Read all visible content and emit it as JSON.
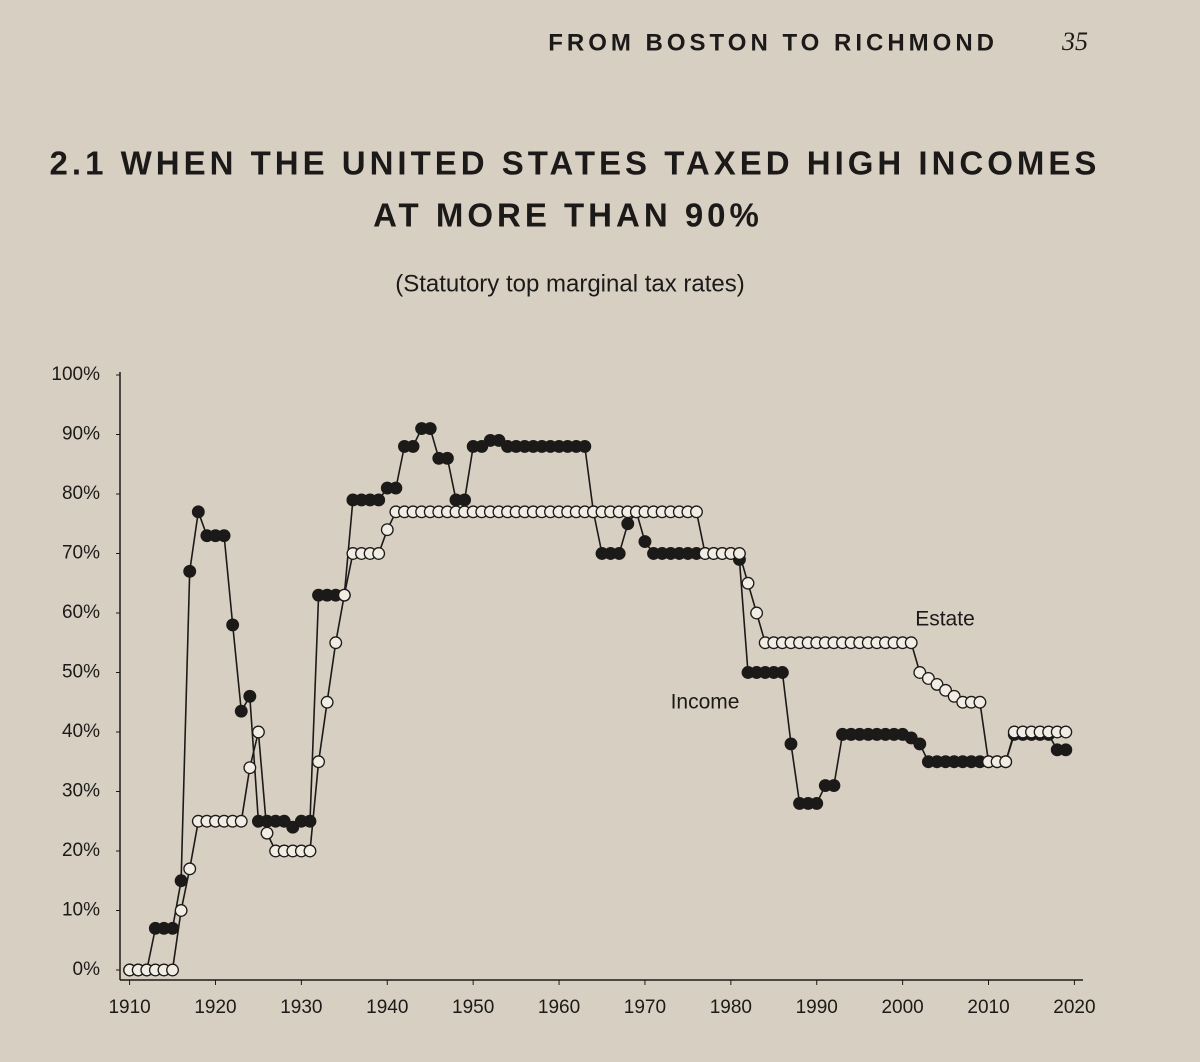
{
  "page": {
    "running_head": "FROM BOSTON TO RICHMOND",
    "page_number": "35"
  },
  "chart_data": {
    "type": "line",
    "title": "2.1 WHEN THE UNITED STATES TAXED HIGH INCOMES",
    "title_line2": "AT MORE THAN 90%",
    "subtitle": "(Statutory top marginal tax rates)",
    "annotations": [
      "Estate",
      "Income"
    ],
    "x": [
      1910,
      1911,
      1912,
      1913,
      1914,
      1915,
      1916,
      1917,
      1918,
      1919,
      1920,
      1921,
      1922,
      1923,
      1924,
      1925,
      1926,
      1927,
      1928,
      1929,
      1930,
      1931,
      1932,
      1933,
      1934,
      1935,
      1936,
      1937,
      1938,
      1939,
      1940,
      1941,
      1942,
      1943,
      1944,
      1945,
      1946,
      1947,
      1948,
      1949,
      1950,
      1951,
      1952,
      1953,
      1954,
      1955,
      1956,
      1957,
      1958,
      1959,
      1960,
      1961,
      1962,
      1963,
      1964,
      1965,
      1966,
      1967,
      1968,
      1969,
      1970,
      1971,
      1972,
      1973,
      1974,
      1975,
      1976,
      1977,
      1978,
      1979,
      1980,
      1981,
      1982,
      1983,
      1984,
      1985,
      1986,
      1987,
      1988,
      1989,
      1990,
      1991,
      1992,
      1993,
      1994,
      1995,
      1996,
      1997,
      1998,
      1999,
      2000,
      2001,
      2002,
      2003,
      2004,
      2005,
      2006,
      2007,
      2008,
      2009,
      2010,
      2011,
      2012,
      2013,
      2014,
      2015,
      2016,
      2017,
      2018,
      2019
    ],
    "series": [
      {
        "name": "Income",
        "color": "#1c1a18",
        "marker": "filled",
        "values": [
          0,
          0,
          0,
          7,
          7,
          7,
          15,
          67,
          77,
          73,
          73,
          73,
          58,
          43.5,
          46,
          25,
          25,
          25,
          25,
          24,
          25,
          25,
          63,
          63,
          63,
          63,
          79,
          79,
          79,
          79,
          81,
          81,
          88,
          88,
          91,
          91,
          86,
          86,
          79,
          79,
          88,
          88,
          89,
          89,
          88,
          88,
          88,
          88,
          88,
          88,
          88,
          88,
          88,
          88,
          77,
          70,
          70,
          70,
          75,
          77,
          72,
          70,
          70,
          70,
          70,
          70,
          70,
          70,
          70,
          70,
          70,
          69,
          50,
          50,
          50,
          50,
          50,
          38,
          28,
          28,
          28,
          31,
          31,
          39.6,
          39.6,
          39.6,
          39.6,
          39.6,
          39.6,
          39.6,
          39.6,
          39,
          38,
          35,
          35,
          35,
          35,
          35,
          35,
          35,
          35,
          35,
          35,
          39.6,
          39.6,
          39.6,
          39.6,
          39.6,
          37,
          37
        ]
      },
      {
        "name": "Estate",
        "color": "#1c1a18",
        "marker": "open",
        "values": [
          0,
          0,
          0,
          0,
          0,
          0,
          10,
          17,
          25,
          25,
          25,
          25,
          25,
          25,
          34,
          40,
          23,
          20,
          20,
          20,
          20,
          20,
          35,
          45,
          55,
          63,
          70,
          70,
          70,
          70,
          74,
          77,
          77,
          77,
          77,
          77,
          77,
          77,
          77,
          77,
          77,
          77,
          77,
          77,
          77,
          77,
          77,
          77,
          77,
          77,
          77,
          77,
          77,
          77,
          77,
          77,
          77,
          77,
          77,
          77,
          77,
          77,
          77,
          77,
          77,
          77,
          77,
          70,
          70,
          70,
          70,
          70,
          65,
          60,
          55,
          55,
          55,
          55,
          55,
          55,
          55,
          55,
          55,
          55,
          55,
          55,
          55,
          55,
          55,
          55,
          55,
          55,
          50,
          49,
          48,
          47,
          46,
          45,
          45,
          45,
          35,
          35,
          35,
          40,
          40,
          40,
          40,
          40,
          40,
          40
        ]
      }
    ],
    "xlim": [
      1909,
      2021
    ],
    "xticks": [
      1910,
      1920,
      1930,
      1940,
      1950,
      1960,
      1970,
      1980,
      1990,
      2000,
      2010,
      2020
    ],
    "ylim": [
      0,
      100
    ],
    "yticks": [
      {
        "value": 0,
        "label": "0%"
      },
      {
        "value": 10,
        "label": "10%"
      },
      {
        "value": 20,
        "label": "20%"
      },
      {
        "value": 30,
        "label": "30%"
      },
      {
        "value": 40,
        "label": "40%"
      },
      {
        "value": 50,
        "label": "50%"
      },
      {
        "value": 60,
        "label": "60%"
      },
      {
        "value": 70,
        "label": "70%"
      },
      {
        "value": 80,
        "label": "80%"
      },
      {
        "value": 90,
        "label": "90%"
      },
      {
        "value": 100,
        "label": "100%"
      }
    ],
    "grid": false
  }
}
